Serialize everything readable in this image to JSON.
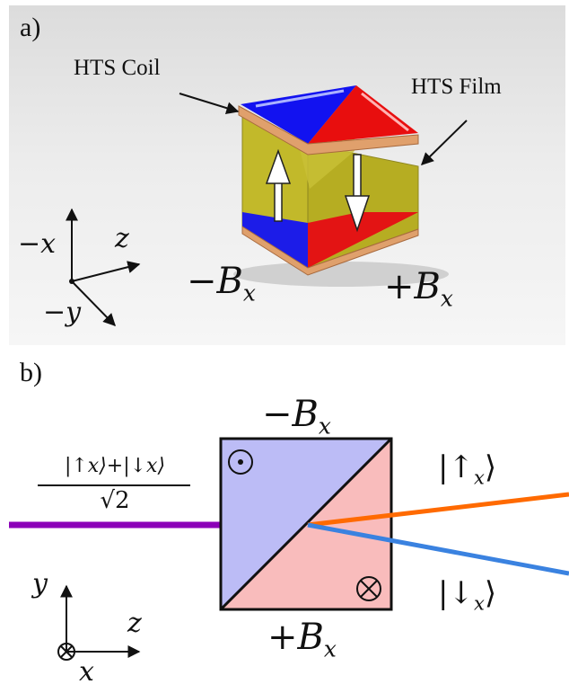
{
  "panel_a": {
    "label": "a)",
    "callout_coil": "HTS Coil",
    "callout_film": "HTS Film",
    "axes": {
      "x_label": "−x",
      "y_label": "−y",
      "z_label": "z"
    },
    "field_left": {
      "sign": "−",
      "symbol": "B",
      "sub": "x"
    },
    "field_right": {
      "sign": "+",
      "symbol": "B",
      "sub": "x"
    }
  },
  "panel_b": {
    "label": "b)",
    "field_top": {
      "sign": "−",
      "symbol": "B",
      "sub": "x"
    },
    "field_bottom": {
      "sign": "+",
      "symbol": "B",
      "sub": "x"
    },
    "input_state": {
      "numerator": "|↑x⟩+|↓x⟩",
      "denominator": "√2"
    },
    "out_up": {
      "bar": "|",
      "arrow": "↑",
      "sub": "x",
      "close": "⟩"
    },
    "out_down": {
      "bar": "|",
      "arrow": "↓",
      "sub": "x",
      "close": "⟩"
    },
    "axes": {
      "y_label": "y",
      "z_label": "z",
      "x_label": "x"
    }
  },
  "colors": {
    "blue_region": "#bcbcf6",
    "red_region": "#f9bcbc",
    "input_beam": "#8b00b8",
    "up_beam": "#ff6a00",
    "down_beam": "#3a82e0",
    "coil_blue": "#1a1aee",
    "coil_red": "#e81010",
    "film_yellow": "#c4bb28",
    "copper": "#e0a070"
  }
}
